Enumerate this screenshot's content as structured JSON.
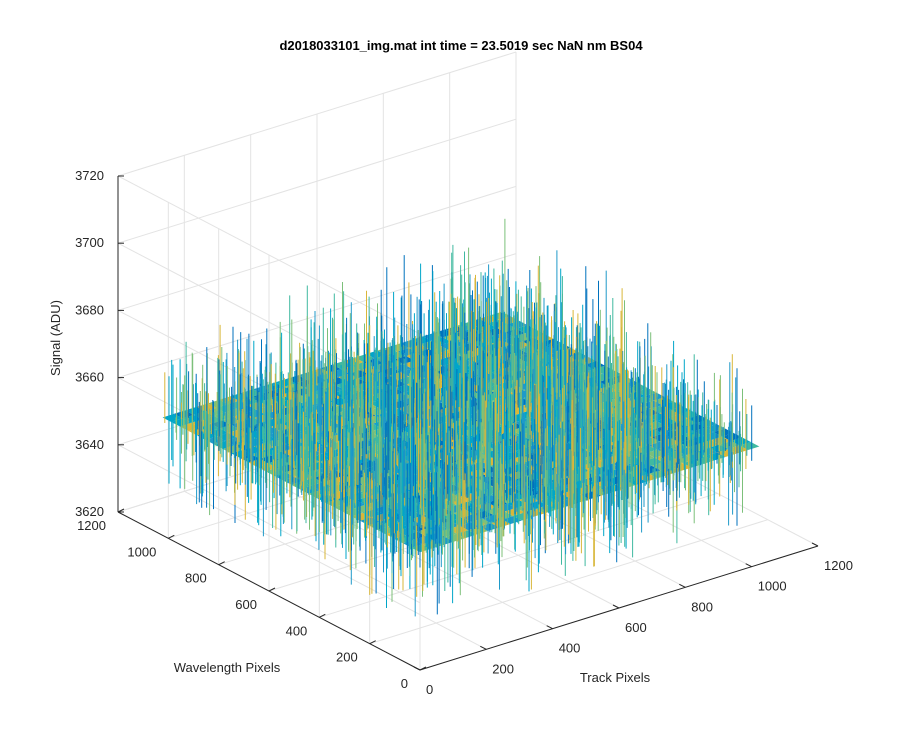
{
  "chart_data": {
    "type": "surface-3d",
    "title": "d2018033101_img.mat int time = 23.5019 sec   NaN nm BS04",
    "xlabel": "Track Pixels",
    "ylabel": "Wavelength Pixels",
    "zlabel": "Signal (ADU)",
    "xlim": [
      0,
      1200
    ],
    "ylim": [
      0,
      1200
    ],
    "zlim": [
      3620,
      3720
    ],
    "x_ticks": [
      "0",
      "200",
      "400",
      "600",
      "800",
      "1000",
      "1200"
    ],
    "y_ticks": [
      "0",
      "200",
      "400",
      "600",
      "800",
      "1000",
      "1200"
    ],
    "z_ticks": [
      "3620",
      "3640",
      "3660",
      "3680",
      "3700",
      "3720"
    ],
    "data_extent": {
      "x": [
        1,
        1024
      ],
      "y": [
        1,
        1024
      ]
    },
    "signal": {
      "mean": 3655,
      "spread": 12,
      "min": 3633,
      "max": 3700
    },
    "grid": true,
    "colormap": [
      "#0072bd",
      "#1f9ac9",
      "#00a6c8",
      "#40b9a0",
      "#7cc07a",
      "#d9b73a"
    ]
  }
}
